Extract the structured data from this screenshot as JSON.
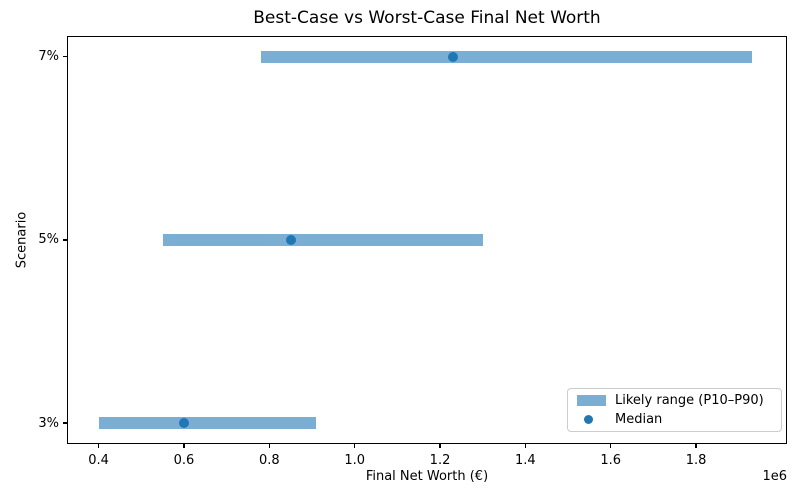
{
  "chart_data": {
    "type": "bar",
    "subtype": "horizontal-range-bars-with-median-markers",
    "title": "Best-Case vs Worst-Case Final Net Worth",
    "xlabel": "Final Net Worth (€)",
    "ylabel": "Scenario",
    "x_offset_label": "1e6",
    "categories": [
      "7%",
      "5%",
      "3%"
    ],
    "series": [
      {
        "scenario": "7%",
        "p10": 780000,
        "median": 1230000,
        "p90": 1930000
      },
      {
        "scenario": "5%",
        "p10": 550000,
        "median": 850000,
        "p90": 1300000
      },
      {
        "scenario": "3%",
        "p10": 400000,
        "median": 600000,
        "p90": 910000
      }
    ],
    "xlim": [
      326000,
      2013000
    ],
    "xticks": [
      400000,
      600000,
      800000,
      1000000,
      1200000,
      1400000,
      1600000,
      1800000
    ],
    "xtick_labels": [
      "0.4",
      "0.6",
      "0.8",
      "1.0",
      "1.2",
      "1.4",
      "1.6",
      "1.8"
    ],
    "grid": false,
    "legend": {
      "position": "lower right",
      "items": [
        {
          "label": "Likely range (P10–P90)",
          "marker": "bar",
          "color": "#7aaed3"
        },
        {
          "label": "Median",
          "marker": "dot",
          "color": "#1f77b4"
        }
      ]
    },
    "colors": {
      "range_bar": "#7aaed3",
      "median_dot": "#1f77b4",
      "axis": "#000000",
      "background": "#ffffff"
    }
  }
}
